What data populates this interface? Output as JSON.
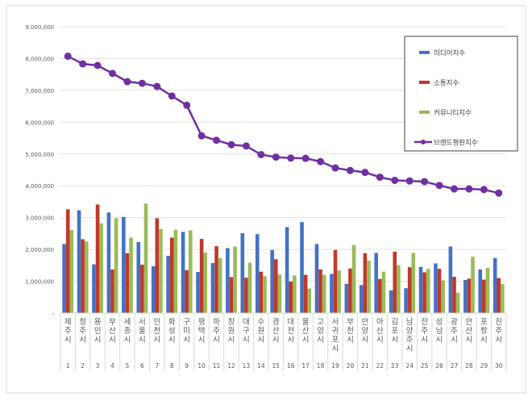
{
  "chart_data": {
    "type": "bar",
    "title": "",
    "xlabel": "",
    "ylabel": "",
    "ylim": [
      0,
      9000000
    ],
    "yticks": [
      "-",
      "1,000,000",
      "2,000,000",
      "3,000,000",
      "4,000,000",
      "5,000,000",
      "6,000,000",
      "7,000,000",
      "8,000,000",
      "9,000,000"
    ],
    "grid": true,
    "legend_position": "top-right",
    "categories": [
      "제주시",
      "청주시",
      "용인시",
      "부산시",
      "세종시",
      "서울시",
      "인천시",
      "화성시",
      "구미시",
      "평택시",
      "파주시",
      "창원시",
      "대구시",
      "수원시",
      "경산시",
      "대전시",
      "울산시",
      "고양시",
      "서귀포시",
      "부천시",
      "안양시",
      "아산시",
      "김포시",
      "남양주시",
      "전주시",
      "성남시",
      "광주시",
      "안산시",
      "포항시",
      "진주시"
    ],
    "ranks": [
      "1",
      "2",
      "3",
      "4",
      "5",
      "6",
      "7",
      "8",
      "9",
      "10",
      "11",
      "12",
      "13",
      "14",
      "15",
      "16",
      "17",
      "18",
      "19",
      "20",
      "21",
      "22",
      "23",
      "24",
      "25",
      "26",
      "27",
      "28",
      "29",
      "30"
    ],
    "series": [
      {
        "name": "미디어지수",
        "type": "bar",
        "color": "#4472c4",
        "values": [
          2170000,
          3230000,
          1530000,
          3160000,
          3020000,
          2230000,
          1470000,
          1800000,
          2550000,
          1290000,
          1570000,
          2040000,
          2510000,
          2480000,
          1980000,
          2700000,
          2860000,
          2170000,
          1230000,
          920000,
          880000,
          1890000,
          710000,
          780000,
          1450000,
          1560000,
          2090000,
          1040000,
          1370000,
          1730000
        ]
      },
      {
        "name": "소통지수",
        "type": "bar",
        "color": "#c0392b",
        "values": [
          3260000,
          2320000,
          3410000,
          1370000,
          1880000,
          1520000,
          2980000,
          2370000,
          1350000,
          2330000,
          2100000,
          1130000,
          1110000,
          1300000,
          1690000,
          990000,
          1200000,
          1370000,
          1980000,
          1400000,
          1880000,
          1070000,
          1930000,
          1440000,
          1280000,
          1390000,
          1140000,
          1080000,
          1050000,
          1100000
        ]
      },
      {
        "name": "커뮤니티지수",
        "type": "bar",
        "color": "#9bbb59",
        "values": [
          2610000,
          2250000,
          2820000,
          2980000,
          2370000,
          3440000,
          2640000,
          2620000,
          2600000,
          1900000,
          1730000,
          2090000,
          1580000,
          1160000,
          1210000,
          1180000,
          770000,
          1200000,
          1340000,
          2140000,
          1650000,
          1300000,
          1510000,
          1890000,
          1390000,
          1030000,
          640000,
          1770000,
          1420000,
          910000
        ]
      },
      {
        "name": "브랜드평판지수",
        "type": "line",
        "color": "#7030a0",
        "values": [
          8070000,
          7830000,
          7780000,
          7530000,
          7270000,
          7220000,
          7120000,
          6820000,
          6530000,
          5570000,
          5430000,
          5290000,
          5250000,
          4980000,
          4900000,
          4870000,
          4860000,
          4760000,
          4560000,
          4480000,
          4420000,
          4270000,
          4170000,
          4150000,
          4130000,
          4010000,
          3900000,
          3900000,
          3880000,
          3770000
        ]
      }
    ]
  }
}
